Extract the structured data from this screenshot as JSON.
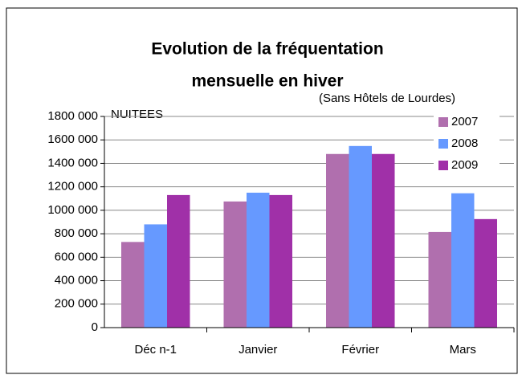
{
  "chart_data": {
    "type": "bar",
    "title": [
      "Evolution de la fréquentation",
      "mensuelle en hiver"
    ],
    "subtitle": "(Sans Hôtels de Lourdes)",
    "y_label": "NUITEES",
    "categories": [
      "Déc n-1",
      "Janvier",
      "Février",
      "Mars"
    ],
    "series": [
      {
        "name": "2007",
        "color": "#b06fae",
        "values": [
          730000,
          1075000,
          1480000,
          815000
        ]
      },
      {
        "name": "2008",
        "color": "#6699ff",
        "values": [
          880000,
          1150000,
          1548000,
          1145000
        ]
      },
      {
        "name": "2009",
        "color": "#a030a8",
        "values": [
          1130000,
          1130000,
          1480000,
          925000
        ]
      }
    ],
    "ylim": [
      0,
      1800000
    ],
    "yticks": [
      0,
      {
        "value": 200000,
        "label": "200 000"
      },
      {
        "value": 400000,
        "label": "400 000"
      },
      {
        "value": 600000,
        "label": "600 000"
      },
      {
        "value": 800000,
        "label": "800 000"
      },
      {
        "value": 1000000,
        "label": "1000 000"
      },
      {
        "value": 1200000,
        "label": "1200 000"
      },
      {
        "value": 1400000,
        "label": "1400 000"
      },
      {
        "value": 1600000,
        "label": "1600 000"
      },
      {
        "value": 1800000,
        "label": "1800 000"
      }
    ],
    "grid": true,
    "legend": "top-right"
  }
}
